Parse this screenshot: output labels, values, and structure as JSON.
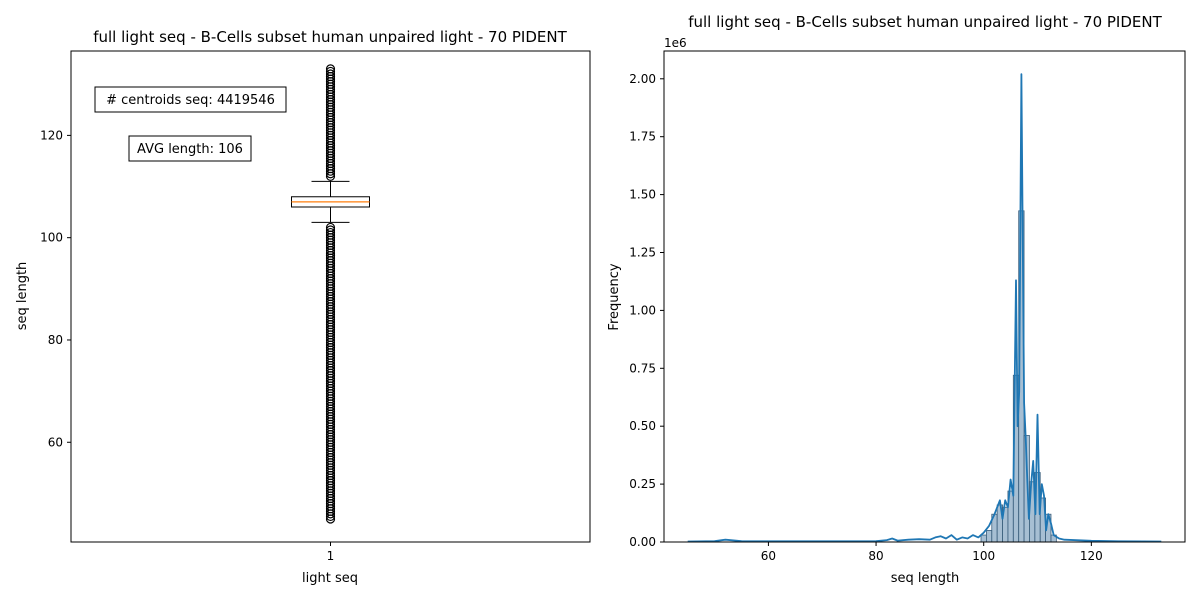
{
  "colors": {
    "box_median": "#ff7f0e",
    "hist_fill": "#8aa9c4",
    "kde_line": "#1f77b4",
    "frame": "#000000"
  },
  "chart_data": [
    {
      "type": "boxplot",
      "title": "full light seq - B-Cells subset human unpaired light - 70 PIDENT",
      "xlabel": "light seq",
      "ylabel": "seq length",
      "categories": [
        "1"
      ],
      "ylim": [
        40.5,
        136.5
      ],
      "yticks": [
        60,
        80,
        100,
        120
      ],
      "box": {
        "whisker_low": 103,
        "q1": 106,
        "median": 107,
        "q3": 108,
        "whisker_high": 111
      },
      "outliers_low_range": [
        45,
        102
      ],
      "outliers_high_range": [
        112,
        133
      ],
      "annotations": [
        "# centroids seq: 4419546",
        "AVG length: 106"
      ],
      "grid": false
    },
    {
      "type": "histogram",
      "title": "full light seq - B-Cells subset human unpaired light - 70 PIDENT",
      "xlabel": "seq length",
      "ylabel": "Frequency",
      "yscale_label": "1e6",
      "xlim": [
        40.6,
        137.4
      ],
      "ylim": [
        0,
        2.12
      ],
      "xticks": [
        60,
        80,
        100,
        120
      ],
      "yticks": [
        "0.00",
        "0.25",
        "0.50",
        "0.75",
        "1.00",
        "1.25",
        "1.50",
        "1.75",
        "2.00"
      ],
      "grid": false,
      "kde": {
        "x": [
          45,
          50,
          52,
          55,
          60,
          70,
          80,
          82,
          83,
          84,
          86,
          88,
          90,
          91,
          92,
          93,
          94,
          95,
          96,
          97,
          98,
          99,
          100,
          101,
          102,
          103,
          103.5,
          104,
          104.5,
          105,
          105.5,
          106,
          106.3,
          106.6,
          107,
          107.2,
          107.5,
          107.8,
          108,
          108.4,
          108.8,
          109.2,
          109.6,
          110,
          110.4,
          110.8,
          111.2,
          111.6,
          112,
          112.5,
          113,
          114,
          115,
          120,
          125,
          133
        ],
        "y": [
          0.002,
          0.004,
          0.01,
          0.004,
          0.003,
          0.003,
          0.004,
          0.008,
          0.015,
          0.006,
          0.01,
          0.012,
          0.01,
          0.02,
          0.025,
          0.015,
          0.03,
          0.01,
          0.02,
          0.015,
          0.03,
          0.02,
          0.04,
          0.07,
          0.12,
          0.18,
          0.1,
          0.18,
          0.15,
          0.27,
          0.2,
          1.13,
          0.5,
          0.65,
          2.02,
          1.43,
          0.6,
          0.45,
          0.32,
          0.1,
          0.25,
          0.35,
          0.12,
          0.55,
          0.12,
          0.25,
          0.2,
          0.05,
          0.12,
          0.08,
          0.03,
          0.015,
          0.01,
          0.005,
          0.003,
          0.002
        ]
      },
      "bins": {
        "x": [
          100,
          101,
          102,
          103,
          104,
          105,
          106,
          107,
          108,
          109,
          110,
          111,
          112,
          113
        ],
        "y": [
          0.03,
          0.05,
          0.12,
          0.16,
          0.15,
          0.22,
          0.72,
          1.43,
          0.46,
          0.26,
          0.3,
          0.19,
          0.12,
          0.03
        ]
      }
    }
  ]
}
